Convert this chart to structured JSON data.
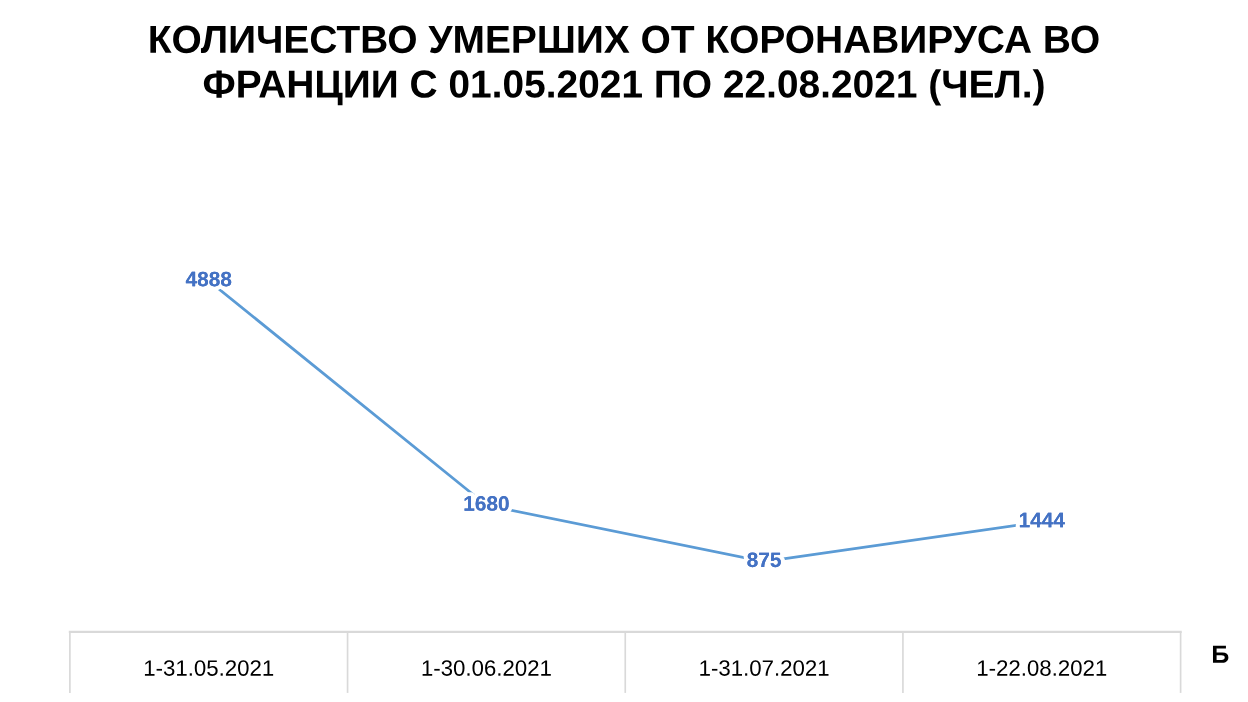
{
  "chart_data": {
    "type": "line",
    "title": "КОЛИЧЕСТВО УМЕРШИХ ОТ КОРОНАВИРУСА ВО\nФРАНЦИИ С 01.05.2021 ПО 22.08.2021 (ЧЕЛ.)",
    "categories": [
      "1-31.05.2021",
      "1-30.06.2021",
      "1-31.07.2021",
      "1-22.08.2021"
    ],
    "series": [
      {
        "color": "#5b9bd5",
        "values": [
          4888,
          1680,
          875,
          1444
        ]
      }
    ],
    "data_labels": true,
    "tick_labels": "x",
    "line_style": "solid",
    "annotations": [
      "Б"
    ]
  }
}
